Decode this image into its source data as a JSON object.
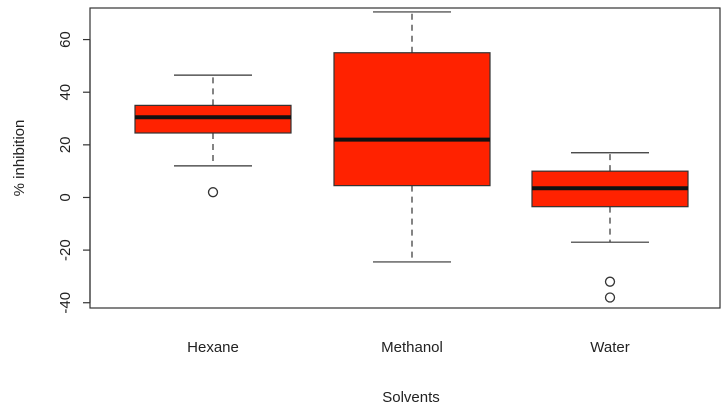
{
  "chart_data": {
    "type": "boxplot",
    "title": "",
    "xlabel": "Solvents",
    "ylabel": "% inhibition",
    "ylim": [
      -42,
      72
    ],
    "yticks": [
      -40,
      -20,
      0,
      20,
      40,
      60
    ],
    "ytick_labels": [
      "-40",
      "-20",
      "0",
      "20",
      "40",
      "60"
    ],
    "categories": [
      "Hexane",
      "Methanol",
      "Water"
    ],
    "box_color": "#ff2200",
    "boxes": [
      {
        "category": "Hexane",
        "whisker_low": 12,
        "q1": 24.5,
        "median": 30.5,
        "q3": 35,
        "whisker_high": 46.5,
        "outliers": [
          2
        ]
      },
      {
        "category": "Methanol",
        "whisker_low": -24.5,
        "q1": 4.5,
        "median": 22,
        "q3": 55,
        "whisker_high": 70.5,
        "outliers": []
      },
      {
        "category": "Water",
        "whisker_low": -17,
        "q1": -3.5,
        "median": 3.5,
        "q3": 10,
        "whisker_high": 17,
        "outliers": [
          -32,
          -38
        ]
      }
    ]
  }
}
